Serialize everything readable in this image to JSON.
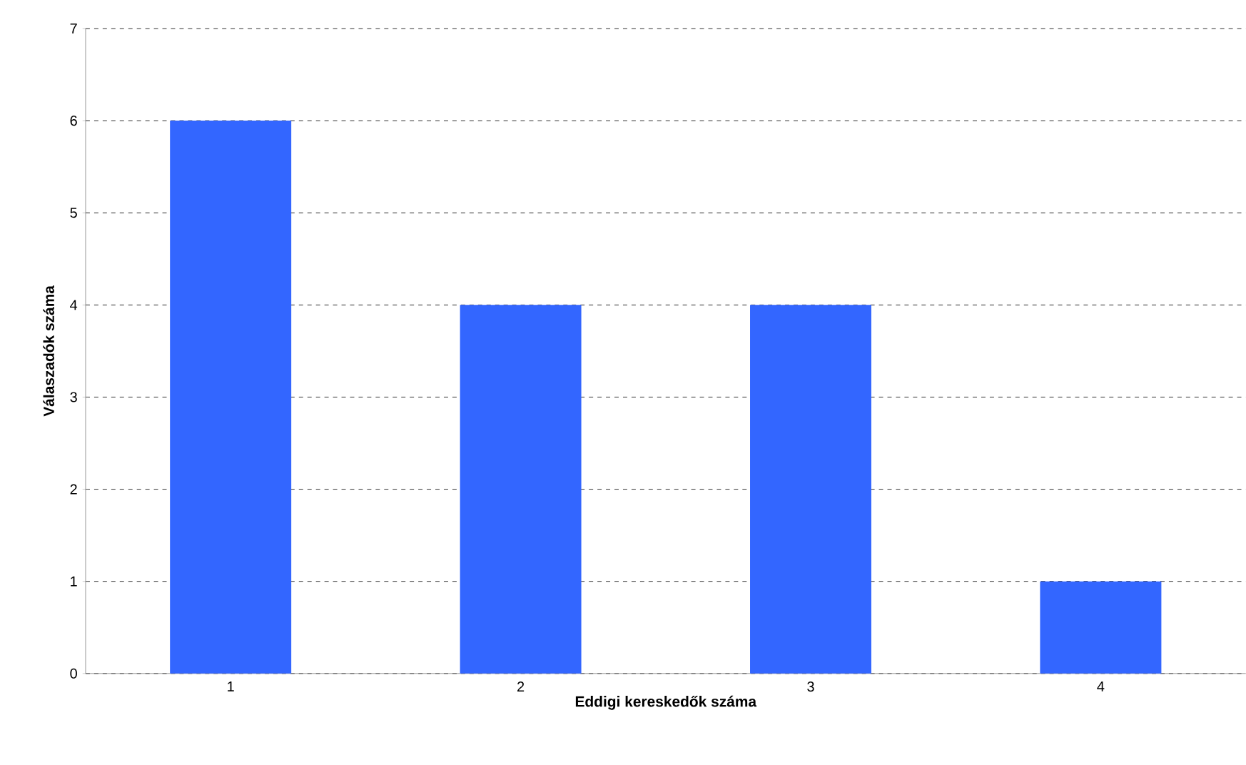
{
  "chart_data": {
    "type": "bar",
    "xlabel": "Eddigi kereskedők száma",
    "ylabel": "Válaszadók száma",
    "categories": [
      "1",
      "2",
      "3",
      "4"
    ],
    "values": [
      6,
      4,
      4,
      1
    ],
    "color": "#3366ff",
    "ylim": [
      0,
      7
    ],
    "yticks": [
      0,
      1,
      2,
      3,
      4,
      5,
      6,
      7
    ],
    "grid": "y"
  }
}
